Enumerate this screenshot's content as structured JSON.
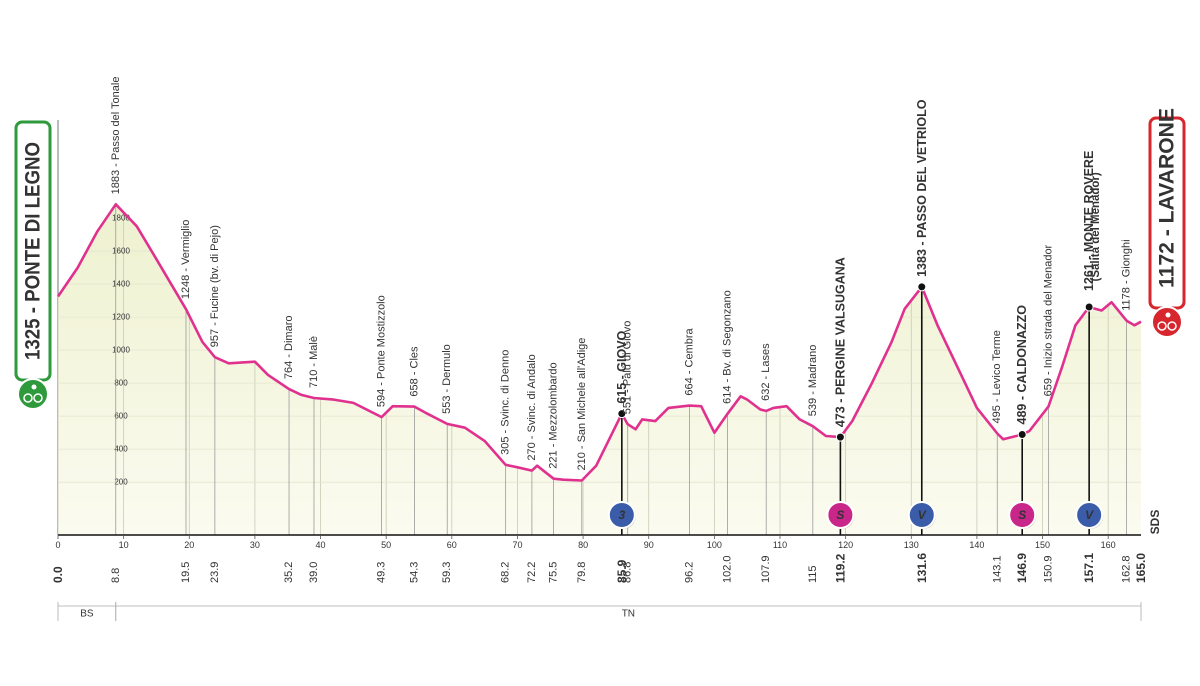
{
  "chart_data": {
    "type": "area",
    "color": "#e0318f",
    "fill": "#eef1cf",
    "start": {
      "name": "1325 - PONTE DI LEGNO",
      "km": {
        "value": 0,
        "label": "0.0"
      },
      "color": "#2f9a3c"
    },
    "finish": {
      "name": "1172 - LAVARONE",
      "km": {
        "value": 165,
        "label": "165.0"
      },
      "color": "#d7262d"
    },
    "logo": "SDS",
    "xlim": [
      0,
      165
    ],
    "xticks": [
      0,
      10,
      20,
      30,
      40,
      50,
      60,
      70,
      80,
      90,
      100,
      110,
      120,
      130,
      140,
      150,
      160
    ],
    "ylim": [
      -120,
      2400
    ],
    "yticks": [
      200,
      400,
      600,
      800,
      1000,
      1200,
      1400,
      1600,
      1800
    ],
    "x": [
      0,
      3,
      6,
      8.8,
      12,
      15,
      19.5,
      22,
      23.9,
      26,
      30,
      32,
      35.2,
      37,
      39,
      42,
      45,
      49.3,
      51,
      54.3,
      56,
      59.3,
      62,
      65,
      68.2,
      70,
      72.2,
      73,
      75.5,
      77,
      79.8,
      82,
      85.9,
      86.8,
      88,
      89,
      91,
      93,
      96.2,
      98,
      100,
      102,
      104,
      105,
      107,
      107.9,
      109,
      111,
      112,
      113,
      115,
      117,
      119.2,
      121,
      124,
      127,
      129,
      131.6,
      134,
      137,
      140,
      143.1,
      144,
      146.9,
      148,
      150.9,
      153,
      155,
      157.1,
      158,
      159,
      160.5,
      162.8,
      164,
      165
    ],
    "values": [
      1325,
      1500,
      1720,
      1883,
      1750,
      1550,
      1248,
      1050,
      957,
      920,
      930,
      850,
      764,
      730,
      710,
      700,
      680,
      594,
      660,
      658,
      620,
      553,
      530,
      450,
      305,
      290,
      270,
      300,
      221,
      215,
      210,
      300,
      615,
      551,
      520,
      580,
      570,
      650,
      664,
      660,
      500,
      614,
      720,
      700,
      640,
      632,
      650,
      660,
      620,
      580,
      539,
      480,
      473,
      570,
      800,
      1050,
      1250,
      1383,
      1150,
      900,
      650,
      495,
      460,
      489,
      510,
      659,
      900,
      1150,
      1261,
      1250,
      1240,
      1290,
      1178,
      1150,
      1172
    ],
    "waypoints": [
      {
        "name": "1883 - Passo del Tonale",
        "km": 8.8,
        "elevation": 1883
      },
      {
        "name": "1248 - Vermiglio",
        "km": 19.5,
        "elevation": 1248
      },
      {
        "name": "957 - Fucine (bv. di Pejo)",
        "km": 23.9,
        "elevation": 957
      },
      {
        "name": "764 - Dimaro",
        "km": 35.2,
        "elevation": 764
      },
      {
        "name": "710 - Malè",
        "km": {
          "value": 39,
          "label": "39.0"
        },
        "elevation": 710
      },
      {
        "name": "594 - Ponte Mostizzolo",
        "km": 49.3,
        "elevation": 594
      },
      {
        "name": "658 - Cles",
        "km": 54.3,
        "elevation": 658
      },
      {
        "name": "553 - Dermulo",
        "km": 59.3,
        "elevation": 553
      },
      {
        "name": "305 - Svinc. di Denno",
        "km": 68.2,
        "elevation": 305
      },
      {
        "name": "270 - Svinc. di Andalo",
        "km": 72.2,
        "elevation": 270
      },
      {
        "name": "221 - Mezzolombardo",
        "km": 75.5,
        "elevation": 221
      },
      {
        "name": "210 - San Michele all'Adige",
        "km": 79.8,
        "elevation": 210
      },
      {
        "name": "615 - GIOVO",
        "km": 85.9,
        "elevation": 615,
        "bold": true
      },
      {
        "name": "551 - Palù di Giovo",
        "km": 86.8,
        "elevation": 551
      },
      {
        "name": "664 - Cembra",
        "km": 96.2,
        "elevation": 664
      },
      {
        "name": "614 - Bv. di Segonzano",
        "km": {
          "value": 102,
          "label": "102.0"
        },
        "elevation": 614
      },
      {
        "name": "632 - Lases",
        "km": 107.9,
        "elevation": 632
      },
      {
        "name": "539 - Madrano",
        "km": 115,
        "elevation": 539,
        "km_label": "115.0"
      },
      {
        "name": "473 - PERGINE VALSUGANA",
        "km": 119.2,
        "elevation": 473,
        "bold": true
      },
      {
        "name": "1383 - PASSO DEL VETRIOLO",
        "km": 131.6,
        "elevation": 1383,
        "bold": true
      },
      {
        "name": "495 - Levico Terme",
        "km": 143.1,
        "elevation": 495
      },
      {
        "name": "489 - CALDONAZZO",
        "km": 146.9,
        "elevation": 489,
        "bold": true
      },
      {
        "name": "659 - Inizio strada del Menador",
        "km": 150.9,
        "elevation": 659
      },
      {
        "name": "1261 - MONTE ROVERE",
        "subtitle": "(Salita del Menador)",
        "km": 157.1,
        "elevation": 1261,
        "bold": true
      },
      {
        "name": "1178 - Gionghi",
        "km": 162.8,
        "elevation": 1178
      }
    ],
    "markers": [
      {
        "label": "3",
        "km": 85.9,
        "color": "#3b5ca8"
      },
      {
        "label": "S",
        "km": 119.2,
        "color": "#c9268a"
      },
      {
        "label": "V",
        "km": 131.6,
        "color": "#3b5ca8"
      },
      {
        "label": "S",
        "km": 146.9,
        "color": "#c9268a"
      },
      {
        "label": "V",
        "km": 157.1,
        "color": "#3b5ca8"
      }
    ],
    "regions": [
      {
        "label": "BS",
        "from": 0,
        "to": 8.8
      },
      {
        "label": "TN",
        "from": 8.8,
        "to": 165
      }
    ]
  }
}
